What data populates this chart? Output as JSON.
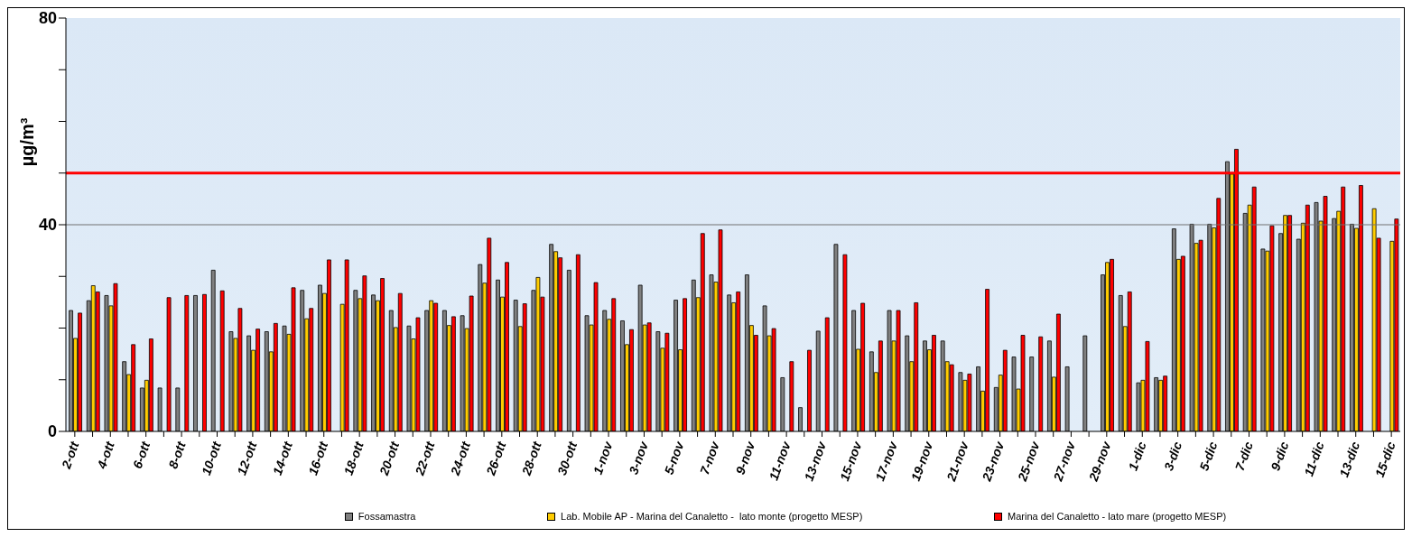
{
  "chart_data": {
    "type": "bar",
    "ylabel": "µg/m³",
    "categories": [
      "2-ott",
      null,
      "4-ott",
      null,
      "6-ott",
      null,
      "8-ott",
      null,
      "10-ott",
      null,
      "12-ott",
      null,
      "14-ott",
      null,
      "16-ott",
      null,
      "18-ott",
      null,
      "20-ott",
      null,
      "22-ott",
      null,
      "24-ott",
      null,
      "26-ott",
      null,
      "28-ott",
      null,
      "30-ott",
      null,
      "1-nov",
      null,
      "3-nov",
      null,
      "5-nov",
      null,
      "7-nov",
      null,
      "9-nov",
      null,
      "11-nov",
      null,
      "13-nov",
      null,
      "15-nov",
      null,
      "17-nov",
      null,
      "19-nov",
      null,
      "21-nov",
      null,
      "23-nov",
      null,
      "25-nov",
      null,
      "27-nov",
      null,
      "29-nov",
      null,
      "1-dic",
      null,
      "3-dic",
      null,
      "5-dic",
      null,
      "7-dic",
      null,
      "9-dic",
      null,
      "11-dic",
      null,
      "13-dic",
      null,
      "15-dic"
    ],
    "series": [
      {
        "name": "Fossamastra",
        "color": "#808080",
        "values": [
          23.4,
          25.3,
          26.3,
          13.5,
          8.4,
          8.4,
          8.4,
          26.3,
          31.2,
          19.3,
          18.5,
          19.3,
          20.4,
          27.3,
          28.3,
          null,
          27.3,
          26.4,
          23.4,
          20.4,
          23.4,
          23.4,
          22.4,
          32.3,
          29.3,
          25.4,
          27.3,
          36.2,
          31.2,
          22.4,
          23.4,
          21.4,
          28.3,
          19.3,
          25.4,
          29.3,
          30.3,
          26.4,
          30.3,
          24.3,
          10.4,
          4.6,
          19.4,
          36.2,
          23.4,
          15.4,
          23.4,
          18.5,
          17.5,
          17.5,
          11.4,
          12.5,
          8.5,
          14.4,
          14.4,
          17.5,
          12.5,
          18.5,
          30.3,
          26.3,
          9.4,
          10.4,
          39.2,
          40.1,
          40.1,
          52.2,
          42.2,
          35.3,
          38.3,
          37.2,
          44.3,
          41.2,
          40.1,
          null,
          null
        ]
      },
      {
        "name": "Lab. Mobile AP - Marina del Canaletto -  lato monte (progetto MESP)",
        "color": "#ffcc00",
        "values": [
          18,
          28.2,
          24.3,
          11,
          9.9,
          null,
          null,
          null,
          null,
          18,
          15.7,
          15.4,
          18.8,
          21.8,
          26.7,
          24.6,
          25.7,
          25.3,
          20.1,
          17.9,
          25.3,
          20.5,
          19.9,
          28.7,
          26,
          20.3,
          29.8,
          34.8,
          null,
          20.6,
          21.7,
          16.8,
          20.6,
          16.1,
          15.8,
          25.9,
          28.9,
          24.9,
          20.5,
          18.5,
          null,
          null,
          null,
          null,
          15.9,
          11.4,
          17.5,
          13.5,
          15.8,
          13.5,
          9.9,
          7.8,
          10.9,
          8.2,
          null,
          10.5,
          null,
          null,
          32.7,
          20.3,
          9.9,
          9.9,
          33.3,
          36.4,
          39.4,
          49.8,
          43.8,
          34.9,
          41.8,
          40.3,
          40.7,
          42.6,
          39.3,
          43.1,
          36.8
        ]
      },
      {
        "name": "Marina del Canaletto - lato mare (progetto MESP)",
        "color": "#ff0000",
        "values": [
          22.9,
          27,
          28.6,
          16.8,
          17.9,
          25.9,
          26.3,
          26.5,
          27.2,
          23.8,
          19.8,
          20.9,
          27.8,
          23.8,
          33.2,
          33.2,
          30.1,
          29.6,
          26.7,
          22,
          24.8,
          22.2,
          26.2,
          37.4,
          32.7,
          24.7,
          26,
          33.6,
          34.2,
          28.8,
          25.7,
          19.7,
          21,
          19,
          25.7,
          38.3,
          39,
          27,
          18.6,
          19.9,
          13.5,
          15.7,
          22,
          34.2,
          24.8,
          17.5,
          23.4,
          24.9,
          18.6,
          12.9,
          11.1,
          27.5,
          15.7,
          18.6,
          18.3,
          22.7,
          null,
          null,
          33.3,
          27,
          17.4,
          10.7,
          33.9,
          37,
          45.1,
          54.6,
          47.3,
          39.8,
          41.8,
          43.8,
          45.5,
          47.3,
          47.6,
          37.4,
          41.1
        ]
      }
    ],
    "ylim": [
      0,
      80
    ],
    "yticks": [
      0,
      {
        "value": 10,
        "label": null
      },
      {
        "value": 20,
        "label": null
      },
      {
        "value": 30,
        "label": null
      },
      40,
      {
        "value": 50,
        "label": null
      },
      {
        "value": 60,
        "label": null
      },
      {
        "value": 70,
        "label": null
      },
      80
    ],
    "legend": "bottom",
    "ref_lines": [
      {
        "axis": "y",
        "value": 50,
        "color": "#ff0000"
      },
      {
        "axis": "y",
        "value": 40,
        "color": "#707070"
      }
    ]
  }
}
